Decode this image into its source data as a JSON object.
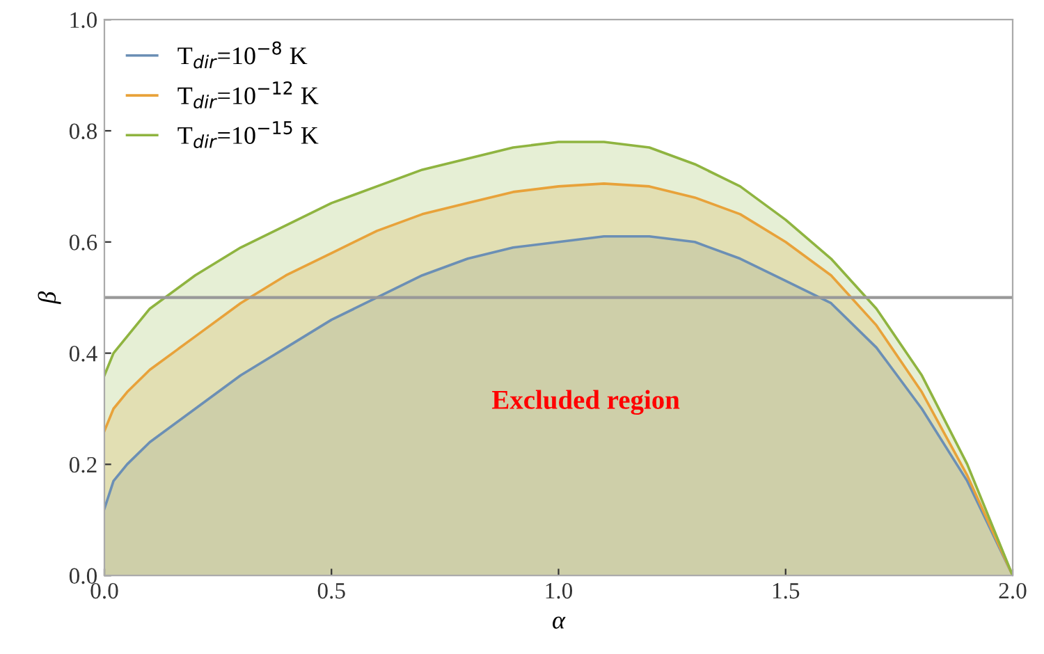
{
  "chart_data": {
    "type": "area",
    "xlabel": "α",
    "ylabel": "β",
    "x": [
      0,
      0.02,
      0.05,
      0.1,
      0.2,
      0.3,
      0.4,
      0.5,
      0.6,
      0.7,
      0.8,
      0.9,
      1.0,
      1.1,
      1.2,
      1.3,
      1.4,
      1.5,
      1.6,
      1.7,
      1.8,
      1.9,
      2.0
    ],
    "series": [
      {
        "name": "T$_{dir}$=10$^{−8}$ K",
        "color": "#6b8fb5",
        "values": [
          0.12,
          0.17,
          0.2,
          0.24,
          0.3,
          0.36,
          0.41,
          0.46,
          0.5,
          0.54,
          0.57,
          0.59,
          0.6,
          0.61,
          0.61,
          0.6,
          0.57,
          0.53,
          0.49,
          0.41,
          0.3,
          0.17,
          0
        ]
      },
      {
        "name": "T$_{dir}$=10$^{−12}$ K",
        "color": "#e8a23a",
        "values": [
          0.26,
          0.3,
          0.33,
          0.37,
          0.43,
          0.49,
          0.54,
          0.58,
          0.62,
          0.65,
          0.67,
          0.69,
          0.7,
          0.705,
          0.7,
          0.68,
          0.65,
          0.6,
          0.54,
          0.45,
          0.33,
          0.18,
          0
        ]
      },
      {
        "name": "T$_{dir}$=10$^{−15}$ K",
        "color": "#8fb440",
        "values": [
          0.36,
          0.4,
          0.43,
          0.48,
          0.54,
          0.59,
          0.63,
          0.67,
          0.7,
          0.73,
          0.75,
          0.77,
          0.78,
          0.78,
          0.77,
          0.74,
          0.7,
          0.64,
          0.57,
          0.48,
          0.36,
          0.2,
          0
        ]
      }
    ],
    "xlim": [
      0,
      2
    ],
    "ylim": [
      0,
      1
    ],
    "xticks": [
      {
        "value": 0,
        "label": "0.0"
      },
      0.5,
      {
        "value": 1,
        "label": "1.0"
      },
      1.5,
      {
        "value": 2,
        "label": "2.0"
      }
    ],
    "yticks": [
      {
        "value": 0,
        "label": "0.0"
      },
      0.2,
      0.4,
      0.6,
      0.8,
      {
        "value": 1,
        "label": "1.0"
      }
    ],
    "ref_lines": [
      {
        "axis": "y",
        "value": 0.5,
        "label": null,
        "color": "#999999"
      }
    ],
    "annotations": [
      "Excluded region"
    ],
    "legend": "top left",
    "grid": false
  }
}
